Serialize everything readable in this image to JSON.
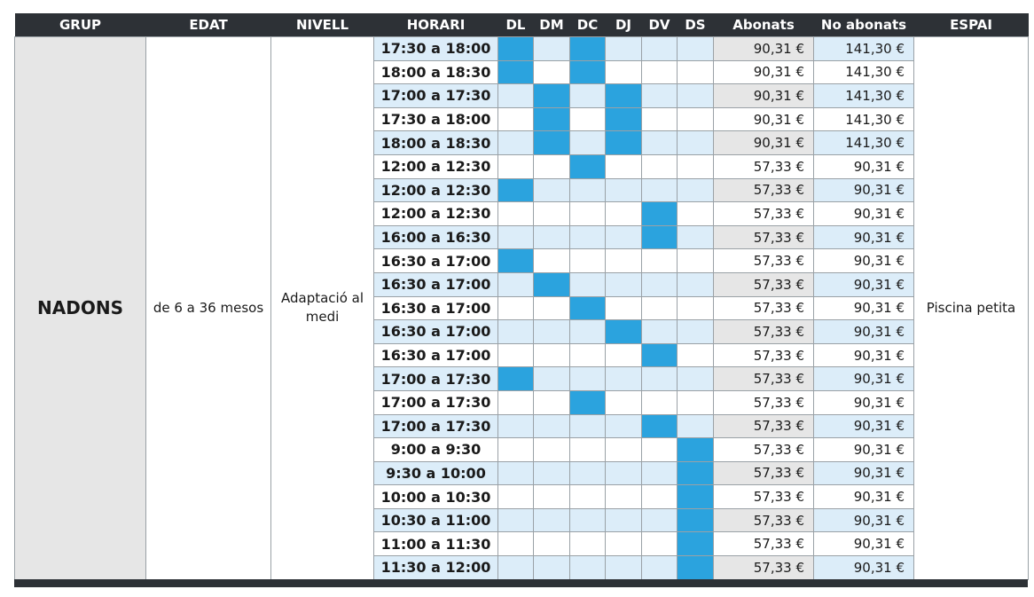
{
  "headers": [
    "GRUP",
    "EDAT",
    "NIVELL",
    "HORARI",
    "DL",
    "DM",
    "DC",
    "DJ",
    "DV",
    "DS",
    "Abonats",
    "No abonats",
    "ESPAI"
  ],
  "group": {
    "name": "NADONS",
    "age": "de 6 a 36 mesos",
    "level": "Adaptació al medi",
    "space": "Piscina petita"
  },
  "active_color": "#2ba3de",
  "row_tint": "#dcedf9",
  "rows": [
    {
      "time": "17:30 a 18:00",
      "days": [
        1,
        0,
        1,
        0,
        0,
        0
      ],
      "abonats": "90,31 €",
      "no_abonats": "141,30 €"
    },
    {
      "time": "18:00 a 18:30",
      "days": [
        1,
        0,
        1,
        0,
        0,
        0
      ],
      "abonats": "90,31 €",
      "no_abonats": "141,30 €"
    },
    {
      "time": "17:00 a 17:30",
      "days": [
        0,
        1,
        0,
        1,
        0,
        0
      ],
      "abonats": "90,31 €",
      "no_abonats": "141,30 €"
    },
    {
      "time": "17:30 a 18:00",
      "days": [
        0,
        1,
        0,
        1,
        0,
        0
      ],
      "abonats": "90,31 €",
      "no_abonats": "141,30 €"
    },
    {
      "time": "18:00 a 18:30",
      "days": [
        0,
        1,
        0,
        1,
        0,
        0
      ],
      "abonats": "90,31 €",
      "no_abonats": "141,30 €"
    },
    {
      "time": "12:00 a 12:30",
      "days": [
        0,
        0,
        1,
        0,
        0,
        0
      ],
      "abonats": "57,33 €",
      "no_abonats": "90,31 €"
    },
    {
      "time": "12:00 a 12:30",
      "days": [
        1,
        0,
        0,
        0,
        0,
        0
      ],
      "abonats": "57,33 €",
      "no_abonats": "90,31 €"
    },
    {
      "time": "12:00 a 12:30",
      "days": [
        0,
        0,
        0,
        0,
        1,
        0
      ],
      "abonats": "57,33 €",
      "no_abonats": "90,31 €"
    },
    {
      "time": "16:00 a 16:30",
      "days": [
        0,
        0,
        0,
        0,
        1,
        0
      ],
      "abonats": "57,33 €",
      "no_abonats": "90,31 €"
    },
    {
      "time": "16:30 a 17:00",
      "days": [
        1,
        0,
        0,
        0,
        0,
        0
      ],
      "abonats": "57,33 €",
      "no_abonats": "90,31 €"
    },
    {
      "time": "16:30 a 17:00",
      "days": [
        0,
        1,
        0,
        0,
        0,
        0
      ],
      "abonats": "57,33 €",
      "no_abonats": "90,31 €"
    },
    {
      "time": "16:30 a 17:00",
      "days": [
        0,
        0,
        1,
        0,
        0,
        0
      ],
      "abonats": "57,33 €",
      "no_abonats": "90,31 €"
    },
    {
      "time": "16:30 a 17:00",
      "days": [
        0,
        0,
        0,
        1,
        0,
        0
      ],
      "abonats": "57,33 €",
      "no_abonats": "90,31 €"
    },
    {
      "time": "16:30 a 17:00",
      "days": [
        0,
        0,
        0,
        0,
        1,
        0
      ],
      "abonats": "57,33 €",
      "no_abonats": "90,31 €"
    },
    {
      "time": "17:00 a 17:30",
      "days": [
        1,
        0,
        0,
        0,
        0,
        0
      ],
      "abonats": "57,33 €",
      "no_abonats": "90,31 €"
    },
    {
      "time": "17:00 a 17:30",
      "days": [
        0,
        0,
        1,
        0,
        0,
        0
      ],
      "abonats": "57,33 €",
      "no_abonats": "90,31 €"
    },
    {
      "time": "17:00 a 17:30",
      "days": [
        0,
        0,
        0,
        0,
        1,
        0
      ],
      "abonats": "57,33 €",
      "no_abonats": "90,31 €"
    },
    {
      "time": "9:00 a 9:30",
      "days": [
        0,
        0,
        0,
        0,
        0,
        1
      ],
      "abonats": "57,33 €",
      "no_abonats": "90,31 €"
    },
    {
      "time": "9:30 a 10:00",
      "days": [
        0,
        0,
        0,
        0,
        0,
        1
      ],
      "abonats": "57,33 €",
      "no_abonats": "90,31 €"
    },
    {
      "time": "10:00 a 10:30",
      "days": [
        0,
        0,
        0,
        0,
        0,
        1
      ],
      "abonats": "57,33 €",
      "no_abonats": "90,31 €"
    },
    {
      "time": "10:30 a 11:00",
      "days": [
        0,
        0,
        0,
        0,
        0,
        1
      ],
      "abonats": "57,33 €",
      "no_abonats": "90,31 €"
    },
    {
      "time": "11:00 a 11:30",
      "days": [
        0,
        0,
        0,
        0,
        0,
        1
      ],
      "abonats": "57,33 €",
      "no_abonats": "90,31 €"
    },
    {
      "time": "11:30 a 12:00",
      "days": [
        0,
        0,
        0,
        0,
        0,
        1
      ],
      "abonats": "57,33 €",
      "no_abonats": "90,31 €"
    }
  ]
}
